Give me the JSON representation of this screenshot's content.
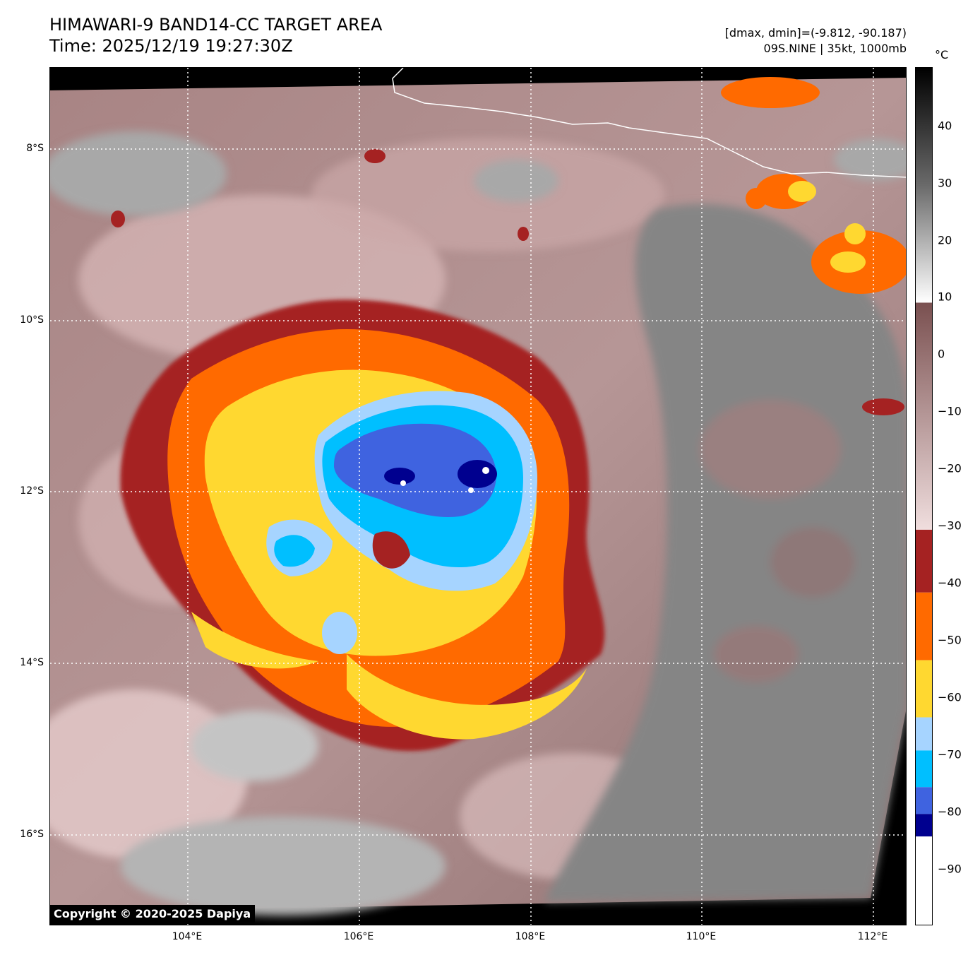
{
  "header": {
    "title_line1": "HIMAWARI-9 BAND14-CC TARGET AREA",
    "title_line2": "Time: 2025/12/19 19:27:30Z",
    "dmax_dmin": "[dmax, dmin]=(-9.812, -90.187)",
    "storm_info": "09S.NINE | 35kt, 1000mb"
  },
  "map": {
    "lat_labels": [
      "8°S",
      "10°S",
      "12°S",
      "14°S",
      "16°S"
    ],
    "lon_labels": [
      "104°E",
      "106°E",
      "108°E",
      "110°E",
      "112°E"
    ],
    "copyright": "Copyright © 2020-2025 Dapiya"
  },
  "colorbar": {
    "unit": "°C",
    "tick_labels": [
      "40",
      "30",
      "20",
      "10",
      "0",
      "−10",
      "−20",
      "−30",
      "−40",
      "−50",
      "−60",
      "−70",
      "−80",
      "−90"
    ],
    "segments": [
      {
        "color": "#000000",
        "label": "gray ramp 50 to 10"
      },
      {
        "color": "#7a5050",
        "label": "brown ramp 10 to -30"
      },
      {
        "color": "#a52222",
        "label": "-30 to -40"
      },
      {
        "color": "#ff6a00",
        "label": "-40 to -52"
      },
      {
        "color": "#ffd830",
        "label": "-52 to -62"
      },
      {
        "color": "#a6d4ff",
        "label": "-62 to -68"
      },
      {
        "color": "#00bfff",
        "label": "-68 to -75"
      },
      {
        "color": "#3f63e0",
        "label": "-75 to -80"
      },
      {
        "color": "#00008f",
        "label": "-80 to -84"
      },
      {
        "color": "#ffffff",
        "label": "-84 to -100"
      }
    ]
  },
  "colors": {
    "ocean_warm": "#9a7474",
    "ocean_mid": "#b89898",
    "high_cloud": "#d8bcbc",
    "land_gray": "#7e7e7e",
    "low_gray": "#b0b0b0"
  }
}
